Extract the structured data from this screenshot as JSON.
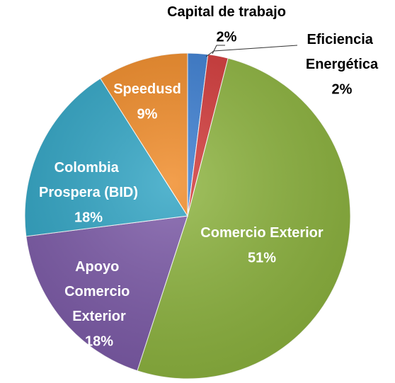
{
  "chart_data": {
    "type": "pie",
    "categories": [
      "Capital de trabajo",
      "Eficiencia Energética",
      "Comercio Exterior",
      "Apoyo Comercio Exterior",
      "Colombia Prospera (BID)",
      "Speedusd"
    ],
    "values": [
      2,
      2,
      51,
      18,
      18,
      9
    ],
    "value_labels": [
      "2%",
      "2%",
      "51%",
      "18%",
      "18%",
      "9%"
    ],
    "colors": [
      "#3a7dd1",
      "#d23838",
      "#8db43e",
      "#7c5aa8",
      "#2fa4c4",
      "#f08a26"
    ]
  }
}
